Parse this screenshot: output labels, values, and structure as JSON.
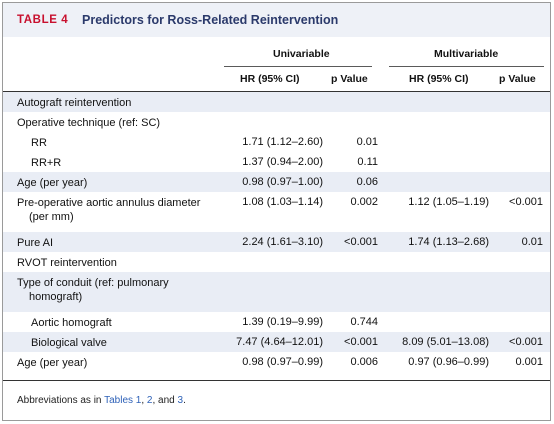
{
  "table": {
    "label": "TABLE 4",
    "title": "Predictors for Ross-Related Reintervention",
    "group_headers": [
      "Univariable",
      "Multivariable"
    ],
    "column_headers": [
      "HR (95% CI)",
      "p Value",
      "HR (95% CI)",
      "p Value"
    ],
    "rows": [
      {
        "label": "Autograft reintervention",
        "indent": 0,
        "uni_hr": "",
        "uni_p": "",
        "multi_hr": "",
        "multi_p": "",
        "shaded": true
      },
      {
        "label": "Operative technique (ref: SC)",
        "indent": 0,
        "uni_hr": "",
        "uni_p": "",
        "multi_hr": "",
        "multi_p": "",
        "shaded": false
      },
      {
        "label": "RR",
        "indent": 1,
        "uni_hr": "1.71 (1.12–2.60)",
        "uni_p": "0.01",
        "multi_hr": "",
        "multi_p": "",
        "shaded": false
      },
      {
        "label": "RR+R",
        "indent": 1,
        "uni_hr": "1.37 (0.94–2.00)",
        "uni_p": "0.11",
        "multi_hr": "",
        "multi_p": "",
        "shaded": false
      },
      {
        "label": "Age (per year)",
        "indent": 0,
        "uni_hr": "0.98 (0.97–1.00)",
        "uni_p": "0.06",
        "multi_hr": "",
        "multi_p": "",
        "shaded": true
      },
      {
        "label": "Pre-operative aortic annulus diameter (per mm)",
        "indent": 0,
        "uni_hr": "1.08 (1.03–1.14)",
        "uni_p": "0.002",
        "multi_hr": "1.12 (1.05–1.19)",
        "multi_p": "<0.001",
        "shaded": false
      },
      {
        "label": "Pure AI",
        "indent": 0,
        "uni_hr": "2.24 (1.61–3.10)",
        "uni_p": "<0.001",
        "multi_hr": "1.74 (1.13–2.68)",
        "multi_p": "0.01",
        "shaded": true
      },
      {
        "label": "RVOT reintervention",
        "indent": 0,
        "uni_hr": "",
        "uni_p": "",
        "multi_hr": "",
        "multi_p": "",
        "shaded": false
      },
      {
        "label": "Type of conduit (ref: pulmonary homograft)",
        "indent": 0,
        "uni_hr": "",
        "uni_p": "",
        "multi_hr": "",
        "multi_p": "",
        "shaded": true
      },
      {
        "label": "Aortic homograft",
        "indent": 1,
        "uni_hr": "1.39 (0.19–9.99)",
        "uni_p": "0.744",
        "multi_hr": "",
        "multi_p": "",
        "shaded": false
      },
      {
        "label": "Biological valve",
        "indent": 1,
        "uni_hr": "7.47 (4.64–12.01)",
        "uni_p": "<0.001",
        "multi_hr": "8.09 (5.01–13.08)",
        "multi_p": "<0.001",
        "shaded": true
      },
      {
        "label": "Age (per year)",
        "indent": 0,
        "uni_hr": "0.98 (0.97–0.99)",
        "uni_p": "0.006",
        "multi_hr": "0.97 (0.96–0.99)",
        "multi_p": "0.001",
        "shaded": false
      }
    ],
    "footnote": {
      "prefix": "Abbreviations as in ",
      "link1": "Tables 1",
      "sep1": ", ",
      "link2": "2",
      "sep2": ", and ",
      "link3": "3",
      "suffix": "."
    }
  },
  "colors": {
    "title_red": "#c8102e",
    "title_navy": "#2b3a6b",
    "band": "#e9edf5",
    "link": "#2f62b8"
  }
}
